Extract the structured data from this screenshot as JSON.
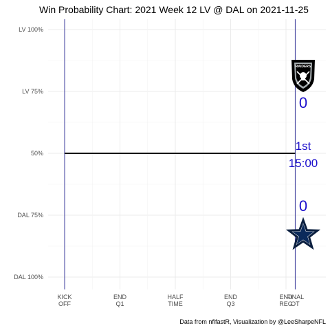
{
  "chart_data": {
    "type": "line",
    "title": "Win Probability Chart: 2021 Week 12 LV @ DAL on 2021-11-25",
    "caption": "Data from nflfastR, Visualization by @LeeSharpeNFL",
    "y_ticks": [
      {
        "value": 1.0,
        "label": "LV 100%"
      },
      {
        "value": 0.75,
        "label": "LV 75%"
      },
      {
        "value": 0.5,
        "label": "50%"
      },
      {
        "value": 0.25,
        "label": "DAL 75%"
      },
      {
        "value": 0.0,
        "label": "DAL 100%"
      }
    ],
    "ylim": [
      0,
      1
    ],
    "x_ticks": [
      {
        "value": 3600,
        "label": [
          "KICK",
          "OFF"
        ]
      },
      {
        "value": 2700,
        "label": [
          "END",
          "Q1"
        ]
      },
      {
        "value": 1800,
        "label": [
          "HALF",
          "TIME"
        ]
      },
      {
        "value": 900,
        "label": [
          "END",
          "Q3"
        ]
      },
      {
        "value": 0,
        "label": [
          "END",
          "REG"
        ]
      },
      {
        "value": -150,
        "label": [
          "FINAL",
          "OT"
        ]
      }
    ],
    "xlim": [
      3600,
      -150
    ],
    "series": [
      {
        "values": [
          {
            "x": 3600,
            "y": 0.5
          },
          {
            "x": -150,
            "y": 0.5
          }
        ]
      }
    ],
    "away": {
      "team": "LV",
      "score": "0",
      "logo": "raiders-shield-logo"
    },
    "home": {
      "team": "DAL",
      "score": "0",
      "logo": "cowboys-star-logo"
    },
    "clock": {
      "period": "1st",
      "time": "15:00"
    },
    "grid": true,
    "colors": {
      "line": "#000000",
      "boundary": "#3b3b9b",
      "score": "#1a0dcc",
      "grid": "#ebebeb"
    }
  }
}
